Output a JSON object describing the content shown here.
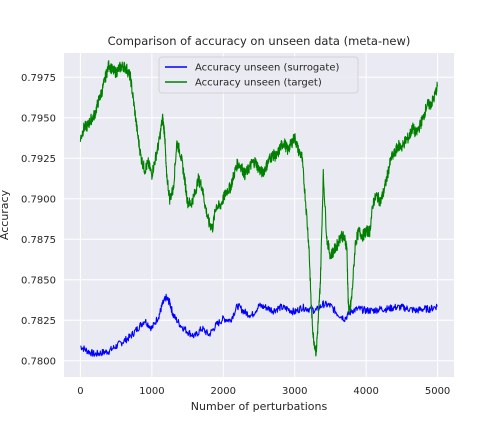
{
  "chart_data": {
    "type": "line",
    "title": "Comparison of accuracy on unseen data (meta-new)",
    "xlabel": "Number of perturbations",
    "ylabel": "Accuracy",
    "xlim": [
      -230,
      5230
    ],
    "ylim": [
      0.779,
      0.799
    ],
    "x_ticks": [
      0,
      1000,
      2000,
      3000,
      4000,
      5000
    ],
    "y_ticks": [
      0.78,
      0.7825,
      0.785,
      0.7875,
      0.79,
      0.7925,
      0.795,
      0.7975
    ],
    "x_tick_labels": [
      "0",
      "1000",
      "2000",
      "3000",
      "4000",
      "5000"
    ],
    "y_tick_labels": [
      "0.7800",
      "0.7825",
      "0.7850",
      "0.7875",
      "0.7900",
      "0.7925",
      "0.7950",
      "0.7975"
    ],
    "grid": true,
    "legend_position": "top-center",
    "background": "#eaeaf2",
    "series": [
      {
        "name": "Accuracy unseen (surrogate)",
        "color": "#0000ff",
        "x": [
          0,
          100,
          200,
          300,
          400,
          500,
          600,
          700,
          800,
          900,
          1000,
          1100,
          1150,
          1200,
          1250,
          1300,
          1400,
          1500,
          1600,
          1700,
          1800,
          1900,
          2000,
          2100,
          2200,
          2300,
          2400,
          2500,
          2600,
          2700,
          2800,
          2900,
          3000,
          3100,
          3200,
          3300,
          3400,
          3500,
          3600,
          3700,
          3800,
          3900,
          4000,
          4100,
          4200,
          4300,
          4400,
          4500,
          4600,
          4700,
          4800,
          4900,
          5000
        ],
        "y": [
          0.7809,
          0.7806,
          0.7804,
          0.7805,
          0.7806,
          0.7809,
          0.7812,
          0.7815,
          0.782,
          0.7825,
          0.782,
          0.7828,
          0.7835,
          0.7839,
          0.7836,
          0.7828,
          0.7822,
          0.7818,
          0.7815,
          0.782,
          0.7816,
          0.7822,
          0.7826,
          0.7825,
          0.7834,
          0.783,
          0.7828,
          0.7834,
          0.7833,
          0.7831,
          0.7833,
          0.7832,
          0.783,
          0.7833,
          0.7832,
          0.7831,
          0.7835,
          0.7834,
          0.7829,
          0.7826,
          0.7831,
          0.7832,
          0.7831,
          0.7831,
          0.7832,
          0.7832,
          0.7833,
          0.7833,
          0.7832,
          0.7831,
          0.7832,
          0.7832,
          0.7834
        ]
      },
      {
        "name": "Accuracy unseen (target)",
        "color": "#008000",
        "x": [
          0,
          50,
          100,
          150,
          200,
          250,
          300,
          350,
          400,
          450,
          500,
          550,
          600,
          650,
          700,
          750,
          800,
          850,
          900,
          950,
          1000,
          1050,
          1100,
          1150,
          1180,
          1200,
          1250,
          1300,
          1350,
          1400,
          1450,
          1500,
          1550,
          1600,
          1650,
          1700,
          1750,
          1800,
          1850,
          1900,
          1950,
          2000,
          2050,
          2100,
          2150,
          2200,
          2250,
          2300,
          2350,
          2400,
          2450,
          2500,
          2550,
          2600,
          2650,
          2700,
          2750,
          2800,
          2850,
          2900,
          2950,
          3000,
          3050,
          3100,
          3150,
          3200,
          3230,
          3260,
          3300,
          3330,
          3360,
          3400,
          3450,
          3500,
          3550,
          3600,
          3650,
          3700,
          3730,
          3750,
          3770,
          3800,
          3850,
          3900,
          3950,
          4000,
          4050,
          4100,
          4150,
          4200,
          4250,
          4300,
          4350,
          4400,
          4450,
          4500,
          4550,
          4600,
          4650,
          4700,
          4750,
          4800,
          4850,
          4900,
          4950,
          5000
        ],
        "y": [
          0.7937,
          0.7944,
          0.7945,
          0.7949,
          0.7952,
          0.796,
          0.7966,
          0.7975,
          0.7983,
          0.7979,
          0.7978,
          0.7981,
          0.7982,
          0.798,
          0.7975,
          0.7958,
          0.794,
          0.7925,
          0.7918,
          0.7922,
          0.7915,
          0.7925,
          0.7935,
          0.795,
          0.794,
          0.7918,
          0.79,
          0.7906,
          0.7935,
          0.7928,
          0.7915,
          0.7898,
          0.7897,
          0.7903,
          0.7912,
          0.7908,
          0.7895,
          0.7885,
          0.7882,
          0.7896,
          0.7895,
          0.79,
          0.7905,
          0.7907,
          0.7915,
          0.7922,
          0.792,
          0.7915,
          0.7918,
          0.7922,
          0.7923,
          0.7918,
          0.7916,
          0.792,
          0.7925,
          0.7927,
          0.7926,
          0.7932,
          0.7935,
          0.793,
          0.7934,
          0.7938,
          0.793,
          0.7926,
          0.79,
          0.787,
          0.7835,
          0.7815,
          0.7805,
          0.7825,
          0.785,
          0.7915,
          0.7875,
          0.7865,
          0.7868,
          0.7872,
          0.7878,
          0.7875,
          0.787,
          0.7835,
          0.783,
          0.784,
          0.7873,
          0.788,
          0.7877,
          0.788,
          0.788,
          0.7898,
          0.7902,
          0.7898,
          0.7905,
          0.7915,
          0.7925,
          0.7928,
          0.7933,
          0.7932,
          0.7936,
          0.7938,
          0.7944,
          0.794,
          0.7945,
          0.795,
          0.7958,
          0.7958,
          0.7962,
          0.797
        ]
      }
    ]
  }
}
